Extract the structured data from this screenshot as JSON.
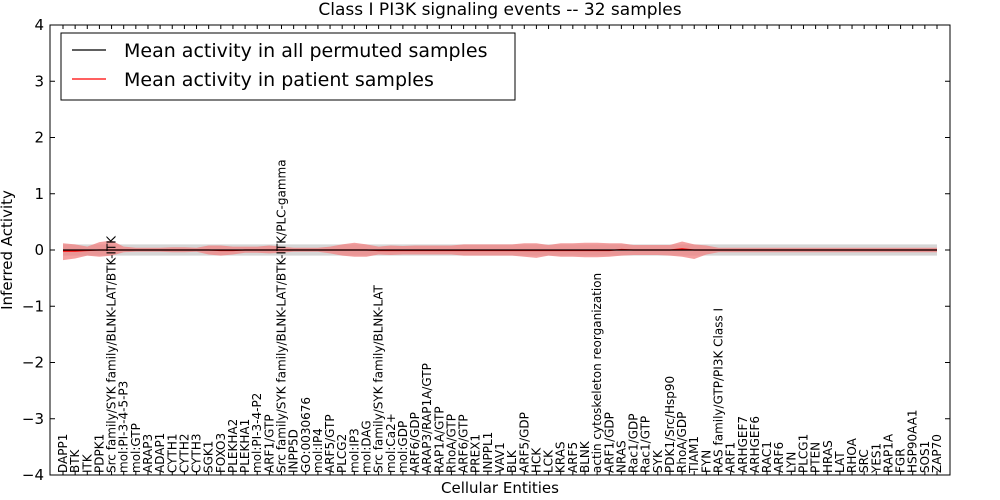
{
  "chart_data": {
    "type": "line",
    "title": "Class I PI3K signaling events -- 32 samples",
    "xlabel": "Cellular Entities",
    "ylabel": "Inferred Activity",
    "ylim": [
      -4,
      4
    ],
    "yticks": [
      -4,
      -3,
      -2,
      -1,
      0,
      1,
      2,
      3,
      4
    ],
    "ytick_labels": [
      "−4",
      "−3",
      "−2",
      "−1",
      "0",
      "1",
      "2",
      "3",
      "4"
    ],
    "grid": false,
    "legend_position": "top-left",
    "colors": {
      "permuted_line": "#000000",
      "patient_line": "#ff0000",
      "patient_band": "#f08080",
      "permuted_band": "#cccccc"
    },
    "categories": [
      "DAPP1",
      "BTK",
      "ITK",
      "PDPK1",
      "Src family/SYK family/BLNK-LAT/BTK-ITK",
      "mol:PI-3-4-5-P3",
      "mol:GTP",
      "ARAP3",
      "ADAP1",
      "CYTH1",
      "CYTH2",
      "CYTH3",
      "SGK1",
      "FOXO3",
      "PLEKHA2",
      "PLEKHA1",
      "mol:PI-3-4-P2",
      "ARF1/GTP",
      "Src family/SYK family/BLNK-LAT/BTK-ITK/PLC-gamma",
      "INPP5D",
      "GO:0030676",
      "mol:IP4",
      "ARF5/GTP",
      "PLCG2",
      "mol:IP3",
      "mol:DAG",
      "Src family/SYK family/BLNK-LAT",
      "mol:Ca2+",
      "mol:GDP",
      "ARF6/GDP",
      "ARAP3/RAP1A/GTP",
      "RAP1A/GTP",
      "RhoA/GTP",
      "ARF6/GTP",
      "PREX1",
      "INPPL1",
      "VAV1",
      "BLK",
      "ARF5/GDP",
      "HCK",
      "LCK",
      "KRAS",
      "ARF5",
      "BLNK",
      "actin cytoskeleton reorganization",
      "ARF1/GDP",
      "NRAS",
      "Rac1/GDP",
      "Rac1/GTP",
      "SYK",
      "PDK1/Src/Hsp90",
      "RhoA/GDP",
      "TIAM1",
      "FYN",
      "RAS family/GTP/PI3K Class I",
      "ARF1",
      "ARHGEF7",
      "ARHGEF6",
      "RAC1",
      "ARF6",
      "LYN",
      "PLCG1",
      "PTEN",
      "HRAS",
      "LAT",
      "RHOA",
      "SRC",
      "YES1",
      "RAP1A",
      "FGR",
      "HSP90AA1",
      "SOS1",
      "ZAP70"
    ],
    "series": [
      {
        "name": "Mean activity in all permuted samples",
        "values": [
          0,
          0,
          0,
          0,
          0,
          0,
          0,
          0,
          0,
          0,
          0,
          0,
          0,
          0,
          0,
          0,
          0,
          0,
          0,
          0,
          0,
          0,
          0,
          0,
          0,
          0,
          0,
          0,
          0,
          0,
          0,
          0,
          0,
          0,
          0,
          0,
          0,
          0,
          0,
          0,
          0,
          0,
          0,
          0,
          0,
          0,
          0,
          0,
          0,
          0,
          0,
          0,
          0,
          0,
          0,
          0,
          0,
          0,
          0,
          0,
          0,
          0,
          0,
          0,
          0,
          0,
          0,
          0,
          0,
          0,
          0,
          0,
          0
        ]
      },
      {
        "name": "Mean activity in patient samples",
        "values": [
          -0.02,
          -0.02,
          -0.01,
          0.0,
          0.0,
          0.0,
          0.0,
          0.0,
          0.0,
          0.0,
          0.0,
          0.0,
          0.0,
          -0.01,
          -0.01,
          0.0,
          0.0,
          0.0,
          0.0,
          0.0,
          0.0,
          0.0,
          0.0,
          0.0,
          0.0,
          0.0,
          -0.01,
          -0.01,
          -0.01,
          -0.01,
          -0.01,
          -0.01,
          -0.01,
          -0.01,
          -0.01,
          -0.01,
          -0.01,
          -0.01,
          -0.01,
          -0.01,
          -0.01,
          -0.01,
          -0.01,
          -0.01,
          -0.01,
          -0.01,
          0.01,
          0.0,
          0.0,
          0.0,
          0.0,
          0.02,
          0.0,
          0.0,
          0.0,
          0.0,
          0.0,
          0.0,
          0.0,
          0.0,
          0.0,
          0.0,
          0.0,
          0.0,
          0.0,
          0.0,
          0.0,
          0.0,
          0.0,
          0.0,
          0.0,
          0.0,
          0.0
        ],
        "band_upper": [
          0.12,
          0.1,
          0.06,
          0.14,
          0.17,
          0.06,
          0.04,
          0.04,
          0.04,
          0.05,
          0.05,
          0.04,
          0.08,
          0.08,
          0.06,
          0.06,
          0.06,
          0.08,
          0.06,
          0.04,
          0.04,
          0.04,
          0.06,
          0.1,
          0.13,
          0.1,
          0.06,
          0.08,
          0.07,
          0.08,
          0.08,
          0.08,
          0.08,
          0.1,
          0.1,
          0.1,
          0.1,
          0.1,
          0.12,
          0.12,
          0.09,
          0.12,
          0.12,
          0.13,
          0.13,
          0.12,
          0.12,
          0.09,
          0.09,
          0.09,
          0.09,
          0.15,
          0.1,
          0.08,
          0.04,
          0.04,
          0.04,
          0.04,
          0.04,
          0.04,
          0.04,
          0.04,
          0.04,
          0.04,
          0.04,
          0.04,
          0.04,
          0.04,
          0.04,
          0.04,
          0.04,
          0.04,
          0.04
        ],
        "band_lower": [
          -0.18,
          -0.15,
          -0.1,
          -0.12,
          -0.1,
          -0.04,
          -0.03,
          -0.03,
          -0.03,
          -0.04,
          -0.04,
          -0.03,
          -0.08,
          -0.1,
          -0.08,
          -0.05,
          -0.05,
          -0.06,
          -0.05,
          -0.03,
          -0.03,
          -0.03,
          -0.06,
          -0.1,
          -0.12,
          -0.12,
          -0.08,
          -0.09,
          -0.08,
          -0.08,
          -0.08,
          -0.08,
          -0.08,
          -0.1,
          -0.1,
          -0.1,
          -0.1,
          -0.1,
          -0.12,
          -0.14,
          -0.1,
          -0.12,
          -0.12,
          -0.13,
          -0.13,
          -0.12,
          -0.1,
          -0.09,
          -0.09,
          -0.09,
          -0.1,
          -0.12,
          -0.16,
          -0.08,
          -0.04,
          -0.04,
          -0.04,
          -0.04,
          -0.04,
          -0.04,
          -0.04,
          -0.04,
          -0.04,
          -0.04,
          -0.04,
          -0.04,
          -0.04,
          -0.04,
          -0.04,
          -0.04,
          -0.04,
          -0.04,
          -0.04
        ]
      }
    ],
    "permuted_band": {
      "upper": 0.1,
      "lower": -0.1
    }
  }
}
